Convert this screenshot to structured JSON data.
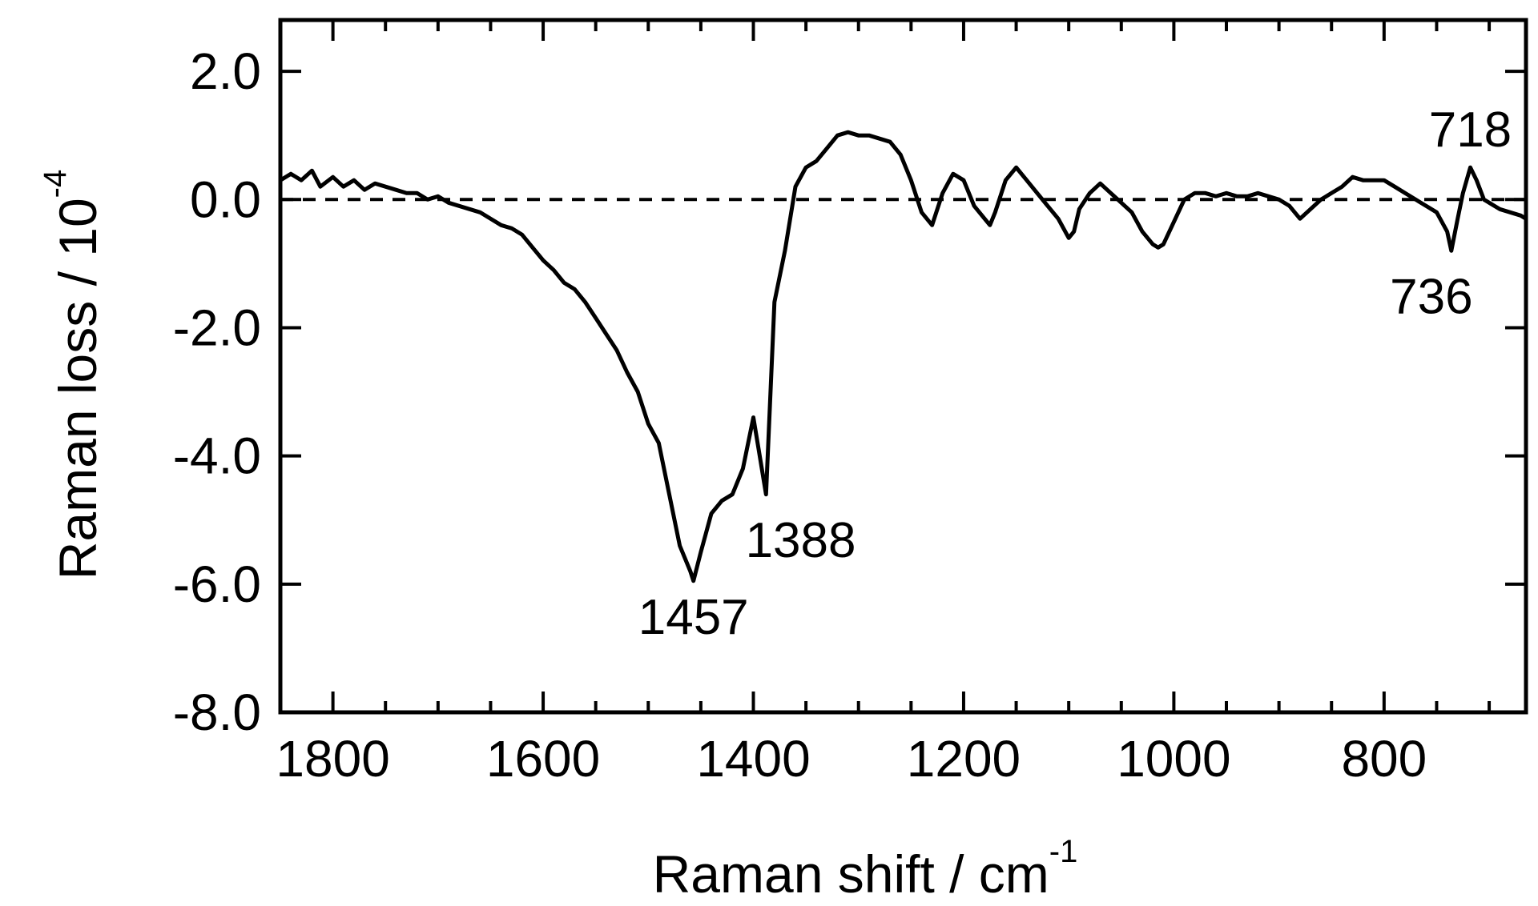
{
  "chart_data": {
    "type": "line",
    "title": "",
    "xlabel": "Raman shift / cm",
    "xlabel_sup": "-1",
    "ylabel": "Raman loss / 10",
    "ylabel_sup": "-4",
    "xlim": [
      1850,
      665
    ],
    "ylim": [
      -8.0,
      2.8
    ],
    "x_reversed": true,
    "x_ticks": [
      1800,
      1600,
      1400,
      1200,
      1000,
      800
    ],
    "x_tick_labels": [
      "1800",
      "1600",
      "1400",
      "1200",
      "1000",
      "800"
    ],
    "y_ticks": [
      2.0,
      0.0,
      -2.0,
      -4.0,
      -6.0,
      -8.0
    ],
    "y_tick_labels": [
      "2.0",
      "0.0",
      "-2.0",
      "-4.0",
      "-6.0",
      "-8.0"
    ],
    "grid": false,
    "legend": "none",
    "reference_line": {
      "y": 0.0,
      "style": "dashed"
    },
    "series": [
      {
        "color": "#000000",
        "x": [
          1850,
          1840,
          1830,
          1820,
          1812,
          1800,
          1790,
          1780,
          1770,
          1760,
          1750,
          1740,
          1730,
          1720,
          1710,
          1700,
          1690,
          1680,
          1670,
          1660,
          1650,
          1640,
          1630,
          1620,
          1610,
          1600,
          1590,
          1580,
          1570,
          1560,
          1550,
          1540,
          1530,
          1520,
          1510,
          1500,
          1490,
          1480,
          1470,
          1460,
          1457,
          1450,
          1440,
          1430,
          1420,
          1410,
          1400,
          1395,
          1388,
          1380,
          1370,
          1360,
          1350,
          1340,
          1330,
          1320,
          1310,
          1300,
          1290,
          1280,
          1270,
          1260,
          1250,
          1240,
          1230,
          1220,
          1210,
          1200,
          1190,
          1180,
          1175,
          1170,
          1160,
          1150,
          1140,
          1130,
          1120,
          1110,
          1100,
          1095,
          1090,
          1080,
          1070,
          1060,
          1050,
          1040,
          1030,
          1020,
          1015,
          1010,
          1000,
          990,
          980,
          970,
          960,
          950,
          940,
          930,
          920,
          910,
          900,
          890,
          880,
          870,
          860,
          850,
          840,
          830,
          820,
          810,
          800,
          790,
          780,
          770,
          760,
          750,
          740,
          736,
          730,
          725,
          718,
          712,
          705,
          700,
          690,
          680,
          670,
          665
        ],
        "y": [
          0.3,
          0.4,
          0.3,
          0.45,
          0.2,
          0.35,
          0.2,
          0.3,
          0.15,
          0.25,
          0.2,
          0.15,
          0.1,
          0.1,
          0.0,
          0.05,
          -0.05,
          -0.1,
          -0.15,
          -0.2,
          -0.3,
          -0.4,
          -0.45,
          -0.55,
          -0.75,
          -0.95,
          -1.1,
          -1.3,
          -1.4,
          -1.6,
          -1.85,
          -2.1,
          -2.35,
          -2.7,
          -3.0,
          -3.5,
          -3.8,
          -4.6,
          -5.4,
          -5.8,
          -5.95,
          -5.5,
          -4.9,
          -4.7,
          -4.6,
          -4.2,
          -3.4,
          -3.9,
          -4.6,
          -1.6,
          -0.8,
          0.2,
          0.5,
          0.6,
          0.8,
          1.0,
          1.05,
          1.0,
          1.0,
          0.95,
          0.9,
          0.7,
          0.3,
          -0.2,
          -0.4,
          0.1,
          0.4,
          0.3,
          -0.1,
          -0.3,
          -0.4,
          -0.2,
          0.3,
          0.5,
          0.3,
          0.1,
          -0.1,
          -0.3,
          -0.6,
          -0.5,
          -0.15,
          0.1,
          0.25,
          0.1,
          -0.05,
          -0.2,
          -0.5,
          -0.7,
          -0.75,
          -0.7,
          -0.35,
          0.0,
          0.1,
          0.1,
          0.05,
          0.1,
          0.05,
          0.05,
          0.1,
          0.05,
          0.0,
          -0.1,
          -0.3,
          -0.15,
          0.0,
          0.1,
          0.2,
          0.35,
          0.3,
          0.3,
          0.3,
          0.2,
          0.1,
          0.0,
          -0.1,
          -0.2,
          -0.5,
          -0.8,
          -0.3,
          0.1,
          0.5,
          0.3,
          0.0,
          -0.05,
          -0.15,
          -0.2,
          -0.25,
          -0.3
        ]
      }
    ],
    "annotations": [
      {
        "text": "1457",
        "x": 1457,
        "y": -6.5
      },
      {
        "text": "1388",
        "x": 1355,
        "y": -5.3
      },
      {
        "text": "718",
        "x": 718,
        "y": 1.1
      },
      {
        "text": "736",
        "x": 755,
        "y": -1.5
      }
    ]
  }
}
